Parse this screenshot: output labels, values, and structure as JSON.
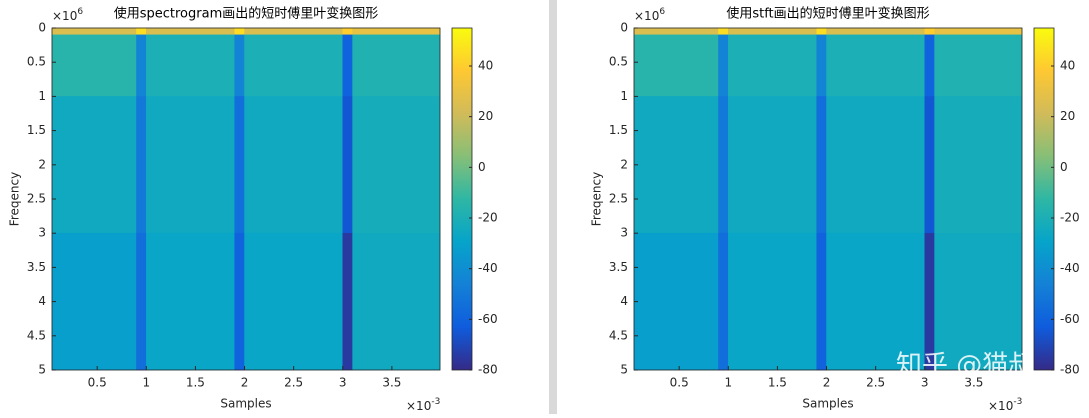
{
  "chart_data": [
    {
      "type": "heatmap",
      "title": "使用spectrogram画出的短时傅里叶变换图形",
      "x_label": "Samples",
      "y_label": "Freqency",
      "x_multiplier": {
        "base": "×10",
        "exp": "-3"
      },
      "y_multiplier": {
        "base": "×10",
        "exp": "6"
      },
      "x_edges": [
        0.04,
        0.9,
        1.0,
        1.9,
        2.0,
        3.0,
        3.1,
        3.99
      ],
      "y_edges": [
        0,
        0.1,
        1,
        3,
        5
      ],
      "values": [
        [
          25,
          45,
          25,
          45,
          25,
          40,
          30
        ],
        [
          -15,
          -45,
          -20,
          -45,
          -20,
          -60,
          -18
        ],
        [
          -25,
          -50,
          -25,
          -55,
          -25,
          -65,
          -22
        ],
        [
          -32,
          -55,
          -28,
          -60,
          -28,
          -75,
          -25
        ]
      ],
      "xlim": [
        0.04,
        3.99
      ],
      "ylim": [
        5,
        0
      ],
      "clim": [
        -80,
        55
      ],
      "xticks": [
        0.5,
        1,
        1.5,
        2,
        2.5,
        3,
        3.5
      ],
      "yticks": [
        0,
        0.5,
        1,
        1.5,
        2,
        2.5,
        3,
        3.5,
        4,
        4.5,
        5
      ],
      "cticks": [
        -80,
        -60,
        -40,
        -20,
        0,
        20,
        40
      ],
      "colormap": [
        "#352a87",
        "#0f5cdd",
        "#1481d6",
        "#06a4ca",
        "#2eb7a4",
        "#87bf77",
        "#d1bb59",
        "#fec832",
        "#f9fb0e"
      ]
    },
    {
      "type": "heatmap",
      "title": "使用stft画出的短时傅里叶变换图形",
      "x_label": "Samples",
      "y_label": "Freqency",
      "x_multiplier": {
        "base": "×10",
        "exp": "-3"
      },
      "y_multiplier": {
        "base": "×10",
        "exp": "6"
      },
      "x_edges": [
        0.04,
        0.9,
        1.0,
        1.9,
        2.0,
        3.0,
        3.1,
        3.99
      ],
      "y_edges": [
        0,
        0.1,
        1,
        3,
        5
      ],
      "values": [
        [
          25,
          45,
          25,
          45,
          25,
          40,
          30
        ],
        [
          -15,
          -45,
          -20,
          -45,
          -20,
          -60,
          -18
        ],
        [
          -25,
          -50,
          -25,
          -55,
          -25,
          -65,
          -22
        ],
        [
          -32,
          -55,
          -28,
          -60,
          -28,
          -75,
          -25
        ]
      ],
      "xlim": [
        0.04,
        3.99
      ],
      "ylim": [
        5,
        0
      ],
      "clim": [
        -80,
        55
      ],
      "xticks": [
        0.5,
        1,
        1.5,
        2,
        2.5,
        3,
        3.5
      ],
      "yticks": [
        0,
        0.5,
        1,
        1.5,
        2,
        2.5,
        3,
        3.5,
        4,
        4.5,
        5
      ],
      "cticks": [
        -80,
        -60,
        -40,
        -20,
        0,
        20,
        40
      ],
      "colormap": [
        "#352a87",
        "#0f5cdd",
        "#1481d6",
        "#06a4ca",
        "#2eb7a4",
        "#87bf77",
        "#d1bb59",
        "#fec832",
        "#f9fb0e"
      ]
    }
  ],
  "watermark": "知乎 @猫叔"
}
